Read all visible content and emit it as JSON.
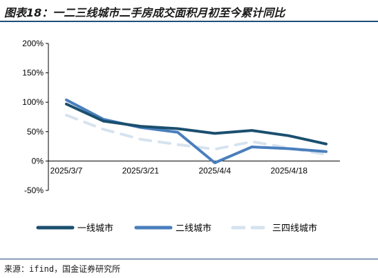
{
  "header": {
    "title": "图表18：一二三线城市二手房成交面积月初至今累计同比"
  },
  "footer": {
    "source": "来源：ifind，国金证券研究所"
  },
  "chart_data": {
    "type": "line",
    "title": "图表18：一二三线城市二手房成交面积月初至今累计同比",
    "xlabel": "",
    "ylabel": "",
    "ylim": [
      -50,
      200
    ],
    "yticks": [
      -50,
      0,
      50,
      100,
      150,
      200
    ],
    "ytick_labels": [
      "-50%",
      "0%",
      "50%",
      "100%",
      "150%",
      "200%"
    ],
    "x": [
      "2025/3/7",
      "2025/3/14",
      "2025/3/21",
      "2025/3/28",
      "2025/4/4",
      "2025/4/11",
      "2025/4/18",
      "2025/4/25"
    ],
    "xtick_labels": [
      "2025/3/7",
      "2025/3/21",
      "2025/4/4",
      "2025/4/18"
    ],
    "grid": false,
    "legend_position": "bottom",
    "series": [
      {
        "name": "一线城市",
        "values": [
          97,
          68,
          59,
          55,
          47,
          52,
          43,
          29
        ],
        "color": "#1b4f6e",
        "dash": "solid"
      },
      {
        "name": "二线城市",
        "values": [
          104,
          71,
          57,
          49,
          -3,
          24,
          21,
          16
        ],
        "color": "#4a7fbd",
        "dash": "solid"
      },
      {
        "name": "三四线城市",
        "values": [
          78,
          54,
          37,
          28,
          20,
          33,
          22,
          11
        ],
        "color": "#d6e3ef",
        "dash": "dashed"
      }
    ]
  }
}
